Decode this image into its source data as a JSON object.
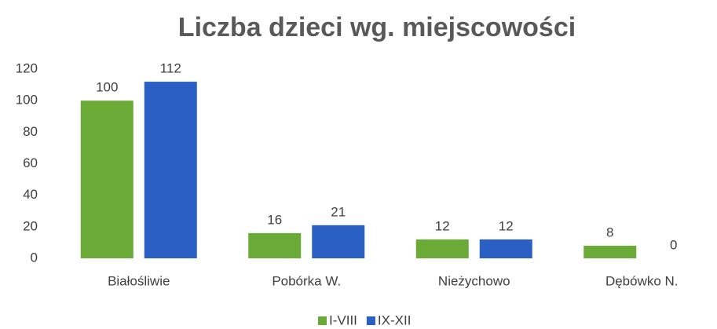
{
  "chart_data": {
    "type": "bar",
    "title": "Liczba dzieci wg. miejscowości",
    "categories": [
      "Białośliwie",
      "Pobórka W.",
      "Nieżychowo",
      "Dębówko N."
    ],
    "series": [
      {
        "name": "I-VIII",
        "color": "#6aaa36",
        "values": [
          100,
          16,
          12,
          8
        ]
      },
      {
        "name": "IX-XII",
        "color": "#2a5fc4",
        "values": [
          112,
          21,
          12,
          0
        ]
      }
    ],
    "ylim": [
      0,
      120
    ],
    "yticks": [
      0,
      20,
      40,
      60,
      80,
      100,
      120
    ],
    "grid": false,
    "legend": "bottom"
  }
}
